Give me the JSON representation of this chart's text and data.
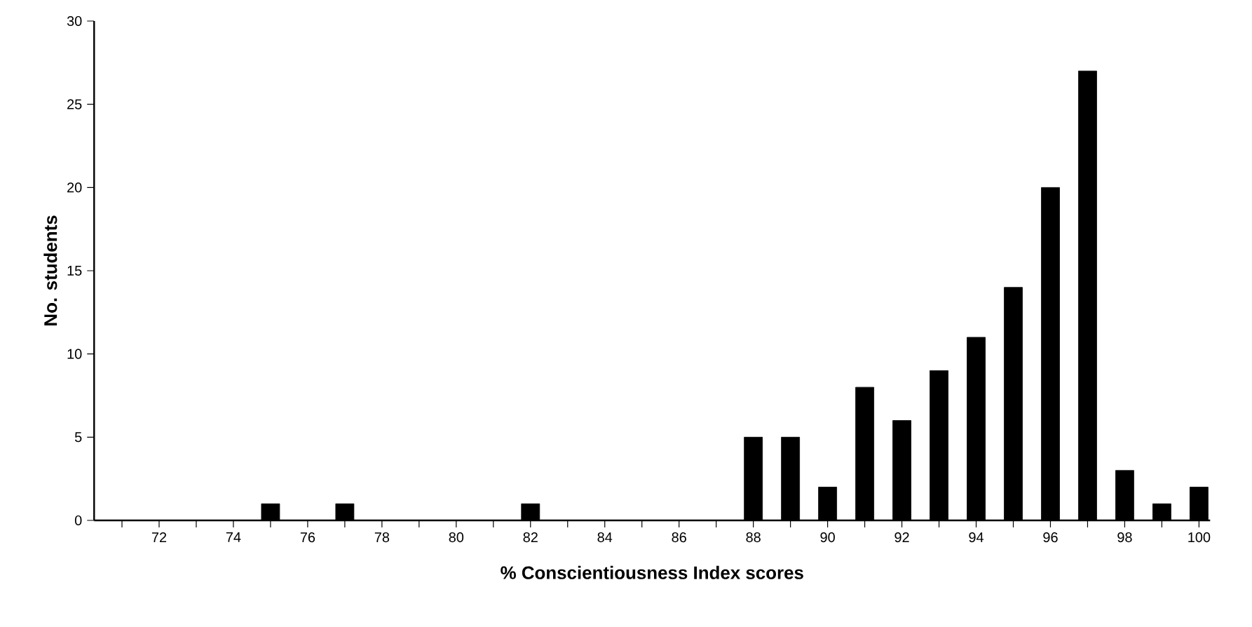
{
  "chart_data": {
    "type": "bar",
    "xlabel": "% Conscientiousness Index scores",
    "ylabel": "No. students",
    "categories": [
      null,
      "72",
      null,
      "74",
      null,
      "76",
      null,
      "78",
      null,
      "80",
      null,
      "82",
      null,
      "84",
      null,
      "86",
      null,
      "88",
      null,
      "90",
      null,
      "92",
      null,
      "94",
      null,
      "96",
      null,
      "98",
      null,
      "100"
    ],
    "values": [
      0,
      0,
      0,
      0,
      1,
      0,
      1,
      0,
      0,
      0,
      0,
      1,
      0,
      0,
      0,
      0,
      0,
      5,
      5,
      2,
      8,
      6,
      9,
      11,
      14,
      20,
      27,
      3,
      1,
      2
    ],
    "color": "#000000",
    "ylim": [
      0,
      30
    ],
    "yticks": [
      0,
      5,
      10,
      15,
      20,
      25,
      30
    ]
  }
}
